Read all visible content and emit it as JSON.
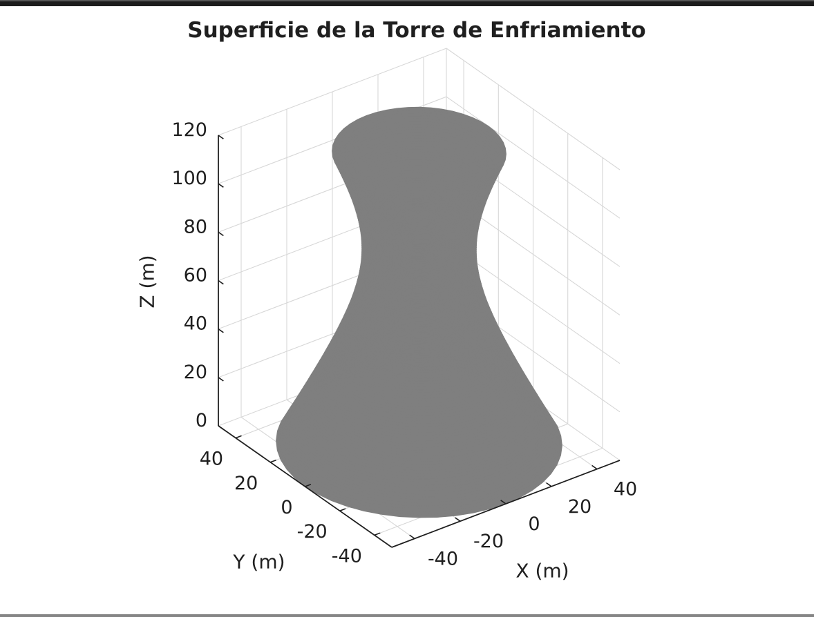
{
  "window": {
    "top_bar_color": "#1c1c1c",
    "bottom_bar_color": "#858585",
    "background": "#ffffff"
  },
  "chart_data": {
    "type": "surface",
    "title": "Superficie de la Torre de Enfriamiento",
    "xlabel": "X (m)",
    "ylabel": "Y (m)",
    "zlabel": "Z (m)",
    "xlim": [
      -50,
      50
    ],
    "ylim": [
      -50,
      50
    ],
    "zlim": [
      0,
      120
    ],
    "xticks": [
      -40,
      -20,
      0,
      20,
      40
    ],
    "yticks": [
      -40,
      -20,
      0,
      20,
      40
    ],
    "zticks": [
      0,
      20,
      40,
      60,
      80,
      100,
      120
    ],
    "grid": true,
    "legend": "none",
    "view": {
      "azimuth_deg": -37.5,
      "elevation_deg": 30
    },
    "surface": {
      "shape": "hyperboloid_of_revolution_cooling_tower",
      "radius_formula_m": "R(z) = 20*sqrt(1 + ((z-80)/35)^2)",
      "throat_radius_m": 20,
      "throat_height_m": 80,
      "shape_param_c_m": 35,
      "base_radius_m": 50,
      "top_radius_m": 30.5,
      "height_m": 120,
      "color": "#7f7f7f"
    },
    "colors": {
      "grid": "#d7d7d7",
      "axis": "#1f1f1f",
      "text": "#1f1f1f",
      "background": "#ffffff"
    }
  }
}
